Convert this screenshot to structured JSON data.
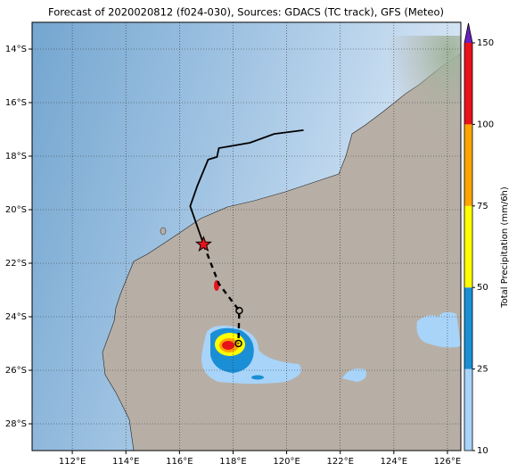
{
  "title": "Forecast of 2020020812 (f024-030), Sources: GDACS (TC track), GFS (Meteo)",
  "map": {
    "xlim": [
      110.5,
      126.5
    ],
    "ylim": [
      -29,
      -13
    ],
    "xticks": [
      {
        "value": 112,
        "label": "112°E"
      },
      {
        "value": 114,
        "label": "114°E"
      },
      {
        "value": 116,
        "label": "116°E"
      },
      {
        "value": 118,
        "label": "118°E"
      },
      {
        "value": 120,
        "label": "120°E"
      },
      {
        "value": 122,
        "label": "122°E"
      },
      {
        "value": 124,
        "label": "124°E"
      },
      {
        "value": 126,
        "label": "126°E"
      }
    ],
    "yticks": [
      {
        "value": -14,
        "label": "14°S"
      },
      {
        "value": -16,
        "label": "16°S"
      },
      {
        "value": -18,
        "label": "18°S"
      },
      {
        "value": -20,
        "label": "20°S"
      },
      {
        "value": -22,
        "label": "22°S"
      },
      {
        "value": -24,
        "label": "24°S"
      },
      {
        "value": -26,
        "label": "26°S"
      },
      {
        "value": -28,
        "label": "28°S"
      }
    ],
    "grid": true
  },
  "colorbar": {
    "label": "Total Precipitation (mm/6h)",
    "levels": [
      10,
      25,
      50,
      75,
      100,
      150
    ],
    "colors": [
      "#a8d4fa",
      "#1a8fd6",
      "#ffff00",
      "#ffa500",
      "#e8121b"
    ],
    "extend_color": "#6a1fc0"
  },
  "track": {
    "observed": {
      "lon": [
        120.63,
        119.53,
        118.63,
        117.47,
        117.4,
        117.07,
        116.67,
        116.4,
        116.9
      ],
      "lat": [
        -17.03,
        -17.17,
        -17.5,
        -17.7,
        -18.03,
        -18.13,
        -19.1,
        -19.87,
        -21.3
      ]
    },
    "forecast": {
      "lon": [
        116.9,
        117.47,
        118.23,
        118.2
      ],
      "lat": [
        -21.3,
        -22.77,
        -23.77,
        -25.0
      ]
    }
  }
}
